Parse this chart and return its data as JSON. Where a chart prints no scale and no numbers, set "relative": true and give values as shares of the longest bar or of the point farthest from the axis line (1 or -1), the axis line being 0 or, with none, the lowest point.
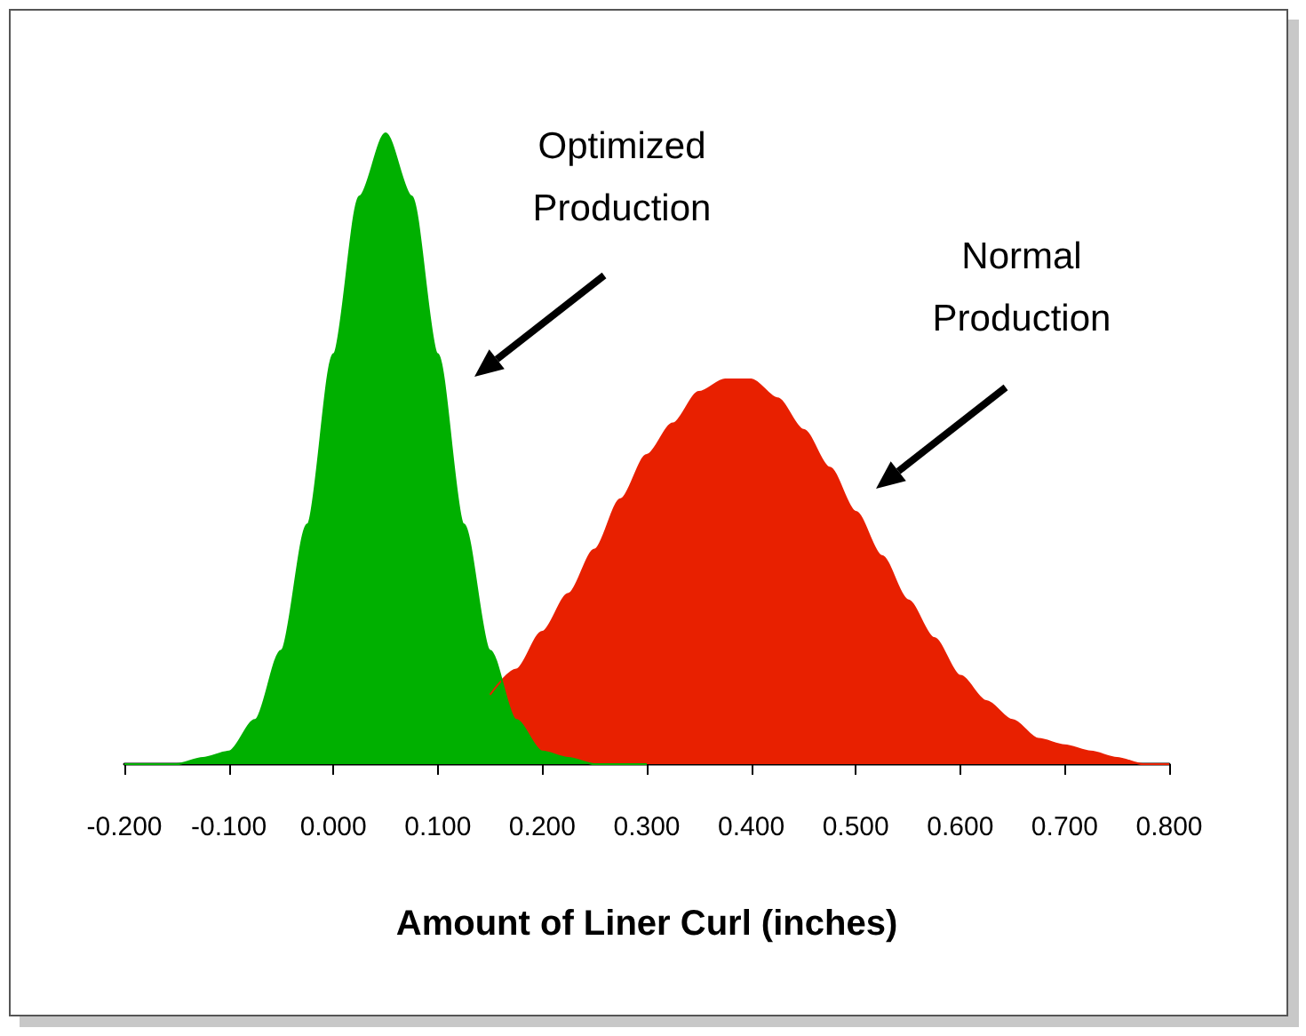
{
  "chart_data": {
    "type": "area",
    "relative": true,
    "xlabel": "Amount of Liner Curl (inches)",
    "xlim": [
      -0.2,
      0.8
    ],
    "xticks": [
      {
        "value": -0.2,
        "label": "-0.200"
      },
      {
        "value": -0.1,
        "label": "-0.100"
      },
      {
        "value": 0,
        "label": "0.000"
      },
      {
        "value": 0.1,
        "label": "0.100"
      },
      {
        "value": 0.2,
        "label": "0.200"
      },
      {
        "value": 0.3,
        "label": "0.300"
      },
      {
        "value": 0.4,
        "label": "0.400"
      },
      {
        "value": 0.5,
        "label": "0.500"
      },
      {
        "value": 0.6,
        "label": "0.600"
      },
      {
        "value": 0.7,
        "label": "0.700"
      },
      {
        "value": 0.8,
        "label": "0.800"
      }
    ],
    "tick_labels": "x",
    "marker": "none",
    "series": [
      {
        "color": "#e82000",
        "x": [
          0.15,
          0.175,
          0.2,
          0.225,
          0.25,
          0.275,
          0.3,
          0.325,
          0.35,
          0.375,
          0.4,
          0.425,
          0.45,
          0.475,
          0.5,
          0.525,
          0.55,
          0.575,
          0.6,
          0.625,
          0.65,
          0.675,
          0.7,
          0.725,
          0.75,
          0.775,
          0.8
        ],
        "values": [
          0.11,
          0.15,
          0.21,
          0.27,
          0.34,
          0.42,
          0.49,
          0.54,
          0.59,
          0.61,
          0.61,
          0.58,
          0.53,
          0.47,
          0.4,
          0.33,
          0.26,
          0.2,
          0.14,
          0.1,
          0.07,
          0.04,
          0.03,
          0.02,
          0.01,
          0,
          0
        ]
      },
      {
        "color": "#00b000",
        "x": [
          -0.2,
          -0.175,
          -0.15,
          -0.125,
          -0.1,
          -0.075,
          -0.05,
          -0.025,
          0,
          0.025,
          0.05,
          0.075,
          0.1,
          0.125,
          0.15,
          0.175,
          0.2,
          0.225,
          0.25,
          0.275,
          0.3
        ],
        "values": [
          0,
          0,
          0,
          0.01,
          0.02,
          0.07,
          0.18,
          0.38,
          0.65,
          0.9,
          1,
          0.9,
          0.65,
          0.38,
          0.18,
          0.07,
          0.02,
          0.01,
          0,
          0,
          0
        ]
      }
    ],
    "annotations": [
      "Optimized\nProduction",
      "Normal\nProduction"
    ]
  }
}
